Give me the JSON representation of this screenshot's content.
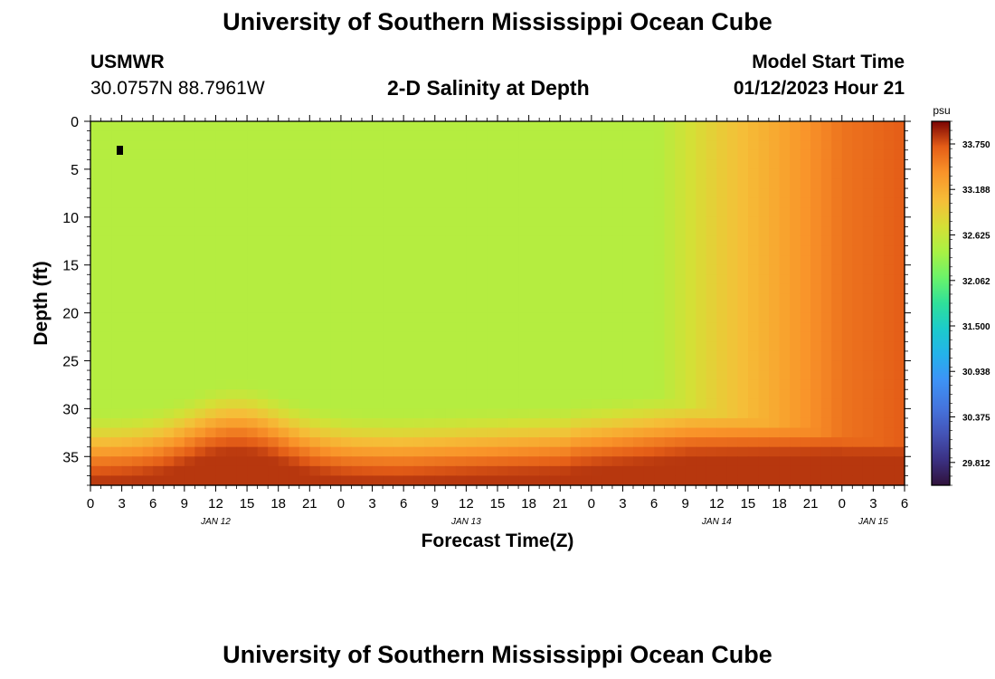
{
  "header": {
    "title": "University of Southern Mississippi Ocean Cube",
    "station": "USMWR",
    "coords": "30.0757N  88.7961W",
    "subtitle": "2-D Salinity at Depth",
    "model_label": "Model Start Time",
    "model_time": "01/12/2023 Hour 21"
  },
  "footer": {
    "title": "University of Southern Mississippi Ocean Cube"
  },
  "chart_data": {
    "type": "heatmap",
    "xlabel": "Forecast Time(Z)",
    "ylabel": "Depth (ft)",
    "x_range_hours": [
      0,
      78
    ],
    "y_range_ft": [
      0,
      38
    ],
    "x_tick_labels": [
      "0",
      "3",
      "6",
      "9",
      "12",
      "15",
      "18",
      "21",
      "0",
      "3",
      "6",
      "9",
      "12",
      "15",
      "18",
      "21",
      "0",
      "3",
      "6",
      "9",
      "12",
      "15",
      "18",
      "21",
      "0",
      "3",
      "6"
    ],
    "x_tick_step_hours": 3,
    "date_labels": [
      {
        "label": "JAN 12",
        "hour": 12
      },
      {
        "label": "JAN 13",
        "hour": 36
      },
      {
        "label": "JAN 14",
        "hour": 60
      },
      {
        "label": "JAN 15",
        "hour": 75
      }
    ],
    "y_ticks": [
      0,
      5,
      10,
      15,
      20,
      25,
      30,
      35
    ],
    "y_tick_labels": [
      "0",
      "5",
      "10",
      "15",
      "20",
      "25",
      "30",
      "35"
    ],
    "colorbar": {
      "unit": "psu",
      "range": [
        29.53,
        34.03
      ],
      "tick_values": [
        33.75,
        33.188,
        32.625,
        32.062,
        31.5,
        30.938,
        30.375,
        29.812
      ],
      "tick_labels": [
        "33.750",
        "33.188",
        "32.625",
        "32.062",
        "31.500",
        "30.938",
        "30.375",
        "29.812"
      ]
    },
    "grid_cols": 78,
    "grid_rows": 38,
    "marker": {
      "hour": 3,
      "depth_ft": 3
    }
  }
}
